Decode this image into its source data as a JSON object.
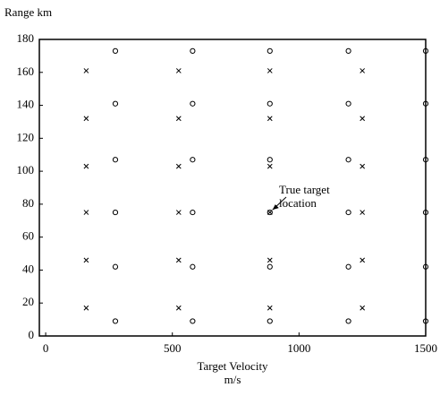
{
  "chart_data": {
    "type": "scatter",
    "y_label": "Range km",
    "x_label": [
      "Target Velocity",
      "m/s"
    ],
    "annotation": [
      "True target",
      "location"
    ],
    "xlim": [
      -25,
      1500
    ],
    "xticks": [
      0,
      500,
      1000,
      1500
    ],
    "ylim": [
      0,
      180
    ],
    "yticks": [
      0,
      20,
      40,
      60,
      80,
      100,
      120,
      140,
      160,
      180
    ],
    "grid": false,
    "series": [
      {
        "marker": "circle",
        "color": "#000000",
        "x": [
          275,
          275,
          275,
          275,
          275,
          275,
          580,
          580,
          580,
          580,
          580,
          580,
          885,
          885,
          885,
          885,
          885,
          885,
          1195,
          1195,
          1195,
          1195,
          1195,
          1195,
          1500,
          1500,
          1500,
          1500,
          1500,
          1500
        ],
        "values": [
          173,
          141,
          107,
          75,
          42,
          9,
          173,
          141,
          107,
          75,
          42,
          9,
          173,
          141,
          107,
          75,
          42,
          9,
          173,
          141,
          107,
          75,
          42,
          9,
          173,
          141,
          107,
          75,
          42,
          9
        ]
      },
      {
        "marker": "x",
        "color": "#000000",
        "x": [
          160,
          160,
          160,
          160,
          160,
          160,
          525,
          525,
          525,
          525,
          525,
          525,
          885,
          885,
          885,
          885,
          885,
          885,
          1250,
          1250,
          1250,
          1250,
          1250,
          1250
        ],
        "values": [
          161,
          132,
          103,
          75,
          46,
          17,
          161,
          132,
          103,
          75,
          46,
          17,
          161,
          132,
          103,
          75,
          46,
          17,
          161,
          132,
          103,
          75,
          46,
          17
        ]
      }
    ]
  }
}
